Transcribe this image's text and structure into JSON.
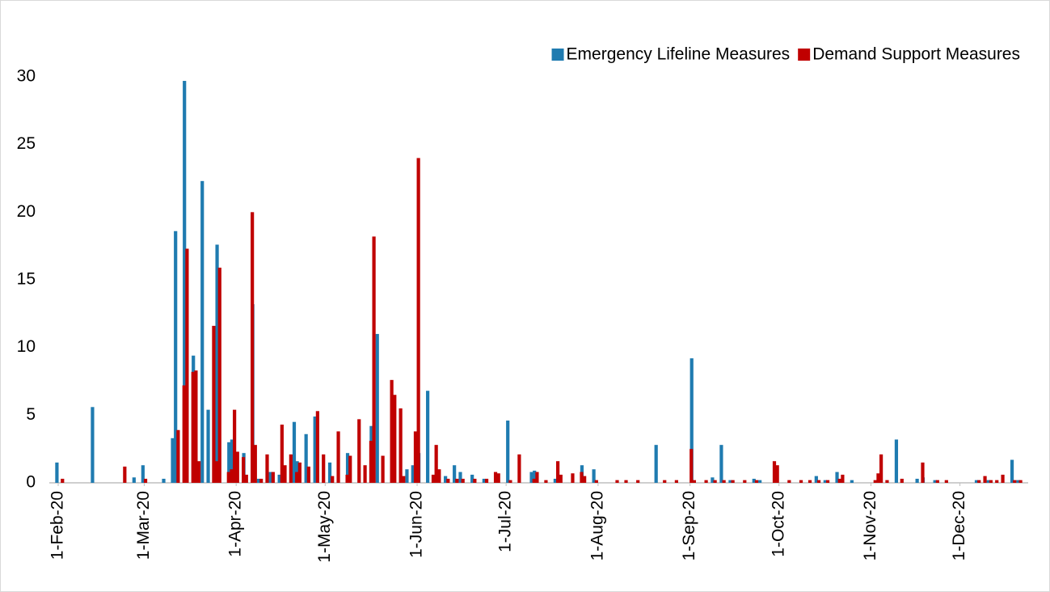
{
  "chart_data": {
    "type": "bar",
    "x": [
      "1-Feb-20",
      "2-Feb-20",
      "13-Feb-20",
      "23-Feb-20",
      "27-Feb-20",
      "1-Mar-20",
      "8-Mar-20",
      "11-Mar-20",
      "12-Mar-20",
      "14-Mar-20",
      "15-Mar-20",
      "17-Mar-20",
      "18-Mar-20",
      "19-Mar-20",
      "21-Mar-20",
      "23-Mar-20",
      "24-Mar-20",
      "25-Mar-20",
      "26-Mar-20",
      "29-Mar-20",
      "30-Mar-20",
      "31-Mar-20",
      "1-Apr-20",
      "3-Apr-20",
      "4-Apr-20",
      "6-Apr-20",
      "7-Apr-20",
      "9-Apr-20",
      "11-Apr-20",
      "13-Apr-20",
      "16-Apr-20",
      "17-Apr-20",
      "19-Apr-20",
      "21-Apr-20",
      "22-Apr-20",
      "25-Apr-20",
      "28-Apr-20",
      "30-Apr-20",
      "3-May-20",
      "5-May-20",
      "8-May-20",
      "9-May-20",
      "12-May-20",
      "14-May-20",
      "16-May-20",
      "17-May-20",
      "19-May-20",
      "20-May-20",
      "23-May-20",
      "24-May-20",
      "26-May-20",
      "27-May-20",
      "29-May-20",
      "31-May-20",
      "1-Jun-20",
      "2-Jun-20",
      "5-Jun-20",
      "6-Jun-20",
      "7-Jun-20",
      "8-Jun-20",
      "11-Jun-20",
      "14-Jun-20",
      "16-Jun-20",
      "20-Jun-20",
      "24-Jun-20",
      "27-Jun-20",
      "28-Jun-20",
      "2-Jul-20",
      "5-Jul-20",
      "10-Jul-20",
      "11-Jul-20",
      "14-Jul-20",
      "18-Jul-20",
      "19-Jul-20",
      "23-Jul-20",
      "26-Jul-20",
      "27-Jul-20",
      "31-Jul-20",
      "7-Aug-20",
      "10-Aug-20",
      "14-Aug-20",
      "21-Aug-20",
      "23-Aug-20",
      "27-Aug-20",
      "1-Sep-20",
      "2-Sep-20",
      "6-Sep-20",
      "9-Sep-20",
      "12-Sep-20",
      "15-Sep-20",
      "19-Sep-20",
      "23-Sep-20",
      "25-Sep-20",
      "29-Sep-20",
      "30-Sep-20",
      "4-Oct-20",
      "8-Oct-20",
      "11-Oct-20",
      "14-Oct-20",
      "17-Oct-20",
      "21-Oct-20",
      "22-Oct-20",
      "26-Oct-20",
      "2-Nov-20",
      "3-Nov-20",
      "4-Nov-20",
      "6-Nov-20",
      "10-Nov-20",
      "11-Nov-20",
      "17-Nov-20",
      "18-Nov-20",
      "19-Nov-20",
      "23-Nov-20",
      "26-Nov-20",
      "7-Dec-20",
      "9-Dec-20",
      "11-Dec-20",
      "13-Dec-20",
      "15-Dec-20",
      "19-Dec-20",
      "21-Dec-20"
    ],
    "series": [
      {
        "name": "Emergency Lifeline Measures",
        "color": "#1f7bb0",
        "values": [
          1.5,
          null,
          5.6,
          null,
          0.4,
          1.3,
          0.3,
          3.3,
          18.6,
          null,
          29.7,
          null,
          9.4,
          null,
          22.3,
          5.4,
          null,
          null,
          17.6,
          null,
          3.0,
          3.2,
          null,
          null,
          2.2,
          null,
          13.2,
          0.3,
          null,
          0.8,
          0.6,
          null,
          null,
          4.5,
          1.6,
          3.6,
          4.9,
          null,
          1.5,
          null,
          null,
          2.2,
          null,
          null,
          null,
          4.2,
          11.0,
          null,
          null,
          null,
          null,
          null,
          1.0,
          1.3,
          null,
          2.2,
          6.8,
          null,
          null,
          null,
          0.5,
          1.3,
          0.8,
          0.6,
          0.3,
          null,
          null,
          4.6,
          null,
          0.8,
          0.9,
          null,
          0.3,
          null,
          null,
          null,
          1.3,
          1.0,
          null,
          null,
          null,
          2.8,
          null,
          null,
          null,
          9.2,
          null,
          0.4,
          2.8,
          0.2,
          null,
          0.3,
          0.2,
          null,
          null,
          null,
          null,
          null,
          0.5,
          0.2,
          0.8,
          null,
          0.2,
          null,
          null,
          null,
          null,
          3.2,
          null,
          0.3,
          null,
          0.4,
          0.2,
          null,
          0.2,
          null,
          0.2,
          null,
          null,
          1.7,
          0.2
        ]
      },
      {
        "name": "Demand Support Measures",
        "color": "#c00000",
        "values": [
          null,
          0.3,
          null,
          1.2,
          null,
          0.3,
          null,
          null,
          3.9,
          7.2,
          17.3,
          8.2,
          8.3,
          1.6,
          null,
          null,
          11.6,
          1.6,
          15.9,
          0.8,
          1.0,
          5.4,
          2.3,
          1.9,
          0.6,
          20.0,
          2.8,
          0.3,
          2.1,
          0.8,
          4.3,
          1.3,
          2.1,
          0.8,
          1.5,
          1.2,
          5.3,
          2.1,
          0.5,
          3.8,
          0.6,
          2.0,
          4.7,
          1.3,
          3.1,
          18.2,
          null,
          2.0,
          7.6,
          6.5,
          5.5,
          0.5,
          null,
          3.8,
          24.0,
          null,
          null,
          0.6,
          2.8,
          1.0,
          0.3,
          0.3,
          0.3,
          0.3,
          0.3,
          0.8,
          0.7,
          0.2,
          2.1,
          0.3,
          0.8,
          0.2,
          1.6,
          0.6,
          0.7,
          0.8,
          0.5,
          0.2,
          0.2,
          0.2,
          0.2,
          null,
          0.2,
          0.2,
          2.5,
          0.2,
          0.2,
          0.2,
          0.2,
          0.2,
          0.2,
          0.2,
          null,
          1.6,
          1.3,
          0.2,
          0.2,
          0.2,
          0.2,
          0.2,
          0.3,
          0.6,
          null,
          0.2,
          0.7,
          2.1,
          0.2,
          null,
          0.3,
          null,
          1.5,
          null,
          0.2,
          0.2,
          0.2,
          0.5,
          0.2,
          0.2,
          0.6,
          0.2,
          0.2
        ]
      }
    ],
    "xlim": [
      "29-Jan-20",
      "24-Dec-20"
    ],
    "xticks": [
      "1-Feb-20",
      "1-Mar-20",
      "1-Apr-20",
      "1-May-20",
      "1-Jun-20",
      "1-Jul-20",
      "1-Aug-20",
      "1-Sep-20",
      "1-Oct-20",
      "1-Nov-20",
      "1-Dec-20"
    ],
    "ylim": [
      0,
      30
    ],
    "yticks": [
      0,
      5,
      10,
      15,
      20,
      25,
      30
    ],
    "legend": "upper right"
  }
}
